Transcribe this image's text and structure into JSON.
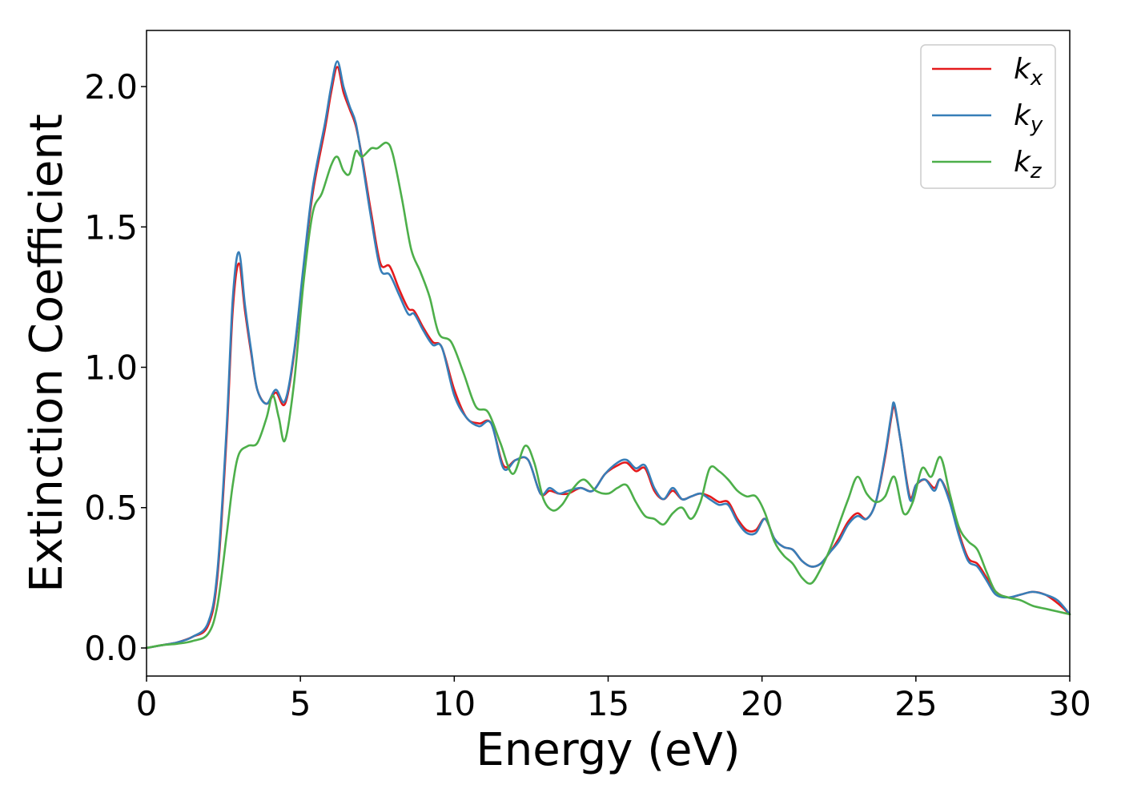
{
  "chart_data": {
    "type": "line",
    "xlabel": "Energy (eV)",
    "ylabel": "Extinction Coefficient",
    "xlim": [
      0,
      30
    ],
    "ylim": [
      -0.1,
      2.2
    ],
    "xticks": [
      0,
      5,
      10,
      15,
      20,
      25,
      30
    ],
    "xtick_labels": [
      "0",
      "5",
      "10",
      "15",
      "20",
      "25",
      "30"
    ],
    "yticks": [
      0.0,
      0.5,
      1.0,
      1.5,
      2.0
    ],
    "ytick_labels": [
      "0.0",
      "0.5",
      "1.0",
      "1.5",
      "2.0"
    ],
    "grid": false,
    "legend_position": "top-right",
    "series": [
      {
        "name": "k_x",
        "label_base": "k",
        "label_sub": "x",
        "color": "#e41a1c",
        "x": [
          0,
          0.5,
          1.0,
          1.5,
          2.0,
          2.3,
          2.6,
          2.8,
          3.0,
          3.2,
          3.4,
          3.6,
          3.9,
          4.2,
          4.5,
          4.8,
          5.1,
          5.4,
          5.8,
          6.0,
          6.2,
          6.4,
          6.6,
          6.8,
          7.0,
          7.3,
          7.6,
          7.9,
          8.2,
          8.5,
          8.7,
          9.0,
          9.3,
          9.6,
          10.0,
          10.4,
          10.8,
          11.2,
          11.6,
          12.0,
          12.4,
          12.8,
          13.1,
          13.4,
          13.7,
          14.1,
          14.5,
          14.9,
          15.3,
          15.6,
          15.9,
          16.2,
          16.5,
          16.8,
          17.1,
          17.4,
          17.7,
          18.0,
          18.3,
          18.6,
          18.9,
          19.2,
          19.5,
          19.8,
          20.1,
          20.4,
          20.7,
          21.0,
          21.3,
          21.6,
          21.9,
          22.2,
          22.5,
          22.8,
          23.1,
          23.4,
          23.7,
          24.0,
          24.2,
          24.3,
          24.5,
          24.8,
          25.0,
          25.3,
          25.6,
          25.8,
          26.1,
          26.4,
          26.7,
          27.0,
          27.3,
          27.6,
          28.0,
          28.4,
          28.8,
          29.2,
          29.6,
          30.0
        ],
        "y": [
          0.0,
          0.01,
          0.02,
          0.04,
          0.08,
          0.25,
          0.75,
          1.2,
          1.37,
          1.2,
          1.05,
          0.92,
          0.87,
          0.91,
          0.87,
          1.05,
          1.35,
          1.62,
          1.85,
          1.98,
          2.07,
          1.98,
          1.92,
          1.86,
          1.75,
          1.55,
          1.37,
          1.36,
          1.28,
          1.21,
          1.2,
          1.14,
          1.09,
          1.07,
          0.92,
          0.82,
          0.8,
          0.8,
          0.65,
          0.67,
          0.67,
          0.55,
          0.56,
          0.55,
          0.55,
          0.57,
          0.56,
          0.62,
          0.65,
          0.66,
          0.63,
          0.64,
          0.56,
          0.53,
          0.56,
          0.53,
          0.54,
          0.55,
          0.54,
          0.52,
          0.52,
          0.46,
          0.42,
          0.42,
          0.46,
          0.39,
          0.36,
          0.35,
          0.31,
          0.29,
          0.3,
          0.34,
          0.39,
          0.45,
          0.48,
          0.46,
          0.52,
          0.68,
          0.82,
          0.86,
          0.74,
          0.54,
          0.58,
          0.6,
          0.57,
          0.6,
          0.53,
          0.41,
          0.32,
          0.3,
          0.25,
          0.2,
          0.18,
          0.19,
          0.2,
          0.19,
          0.16,
          0.12
        ]
      },
      {
        "name": "k_y",
        "label_base": "k",
        "label_sub": "y",
        "color": "#377eb8",
        "x": [
          0,
          0.5,
          1.0,
          1.5,
          2.0,
          2.3,
          2.6,
          2.8,
          3.0,
          3.2,
          3.4,
          3.6,
          3.9,
          4.2,
          4.5,
          4.8,
          5.1,
          5.4,
          5.8,
          6.0,
          6.2,
          6.4,
          6.6,
          6.8,
          7.0,
          7.3,
          7.6,
          7.9,
          8.2,
          8.5,
          8.7,
          9.0,
          9.3,
          9.6,
          10.0,
          10.4,
          10.8,
          11.2,
          11.6,
          12.0,
          12.4,
          12.8,
          13.1,
          13.4,
          13.7,
          14.1,
          14.5,
          14.9,
          15.3,
          15.6,
          15.9,
          16.2,
          16.5,
          16.8,
          17.1,
          17.4,
          17.7,
          18.0,
          18.3,
          18.6,
          18.9,
          19.2,
          19.5,
          19.8,
          20.1,
          20.4,
          20.7,
          21.0,
          21.3,
          21.6,
          21.9,
          22.2,
          22.5,
          22.8,
          23.1,
          23.4,
          23.7,
          24.0,
          24.2,
          24.3,
          24.5,
          24.8,
          25.0,
          25.3,
          25.6,
          25.8,
          26.1,
          26.4,
          26.7,
          27.0,
          27.3,
          27.6,
          28.0,
          28.4,
          28.8,
          29.2,
          29.6,
          30.0
        ],
        "y": [
          0.0,
          0.01,
          0.02,
          0.04,
          0.09,
          0.27,
          0.78,
          1.24,
          1.41,
          1.22,
          1.06,
          0.92,
          0.87,
          0.92,
          0.88,
          1.06,
          1.36,
          1.64,
          1.87,
          2.0,
          2.09,
          2.0,
          1.93,
          1.87,
          1.74,
          1.53,
          1.35,
          1.33,
          1.26,
          1.19,
          1.19,
          1.13,
          1.08,
          1.07,
          0.9,
          0.82,
          0.79,
          0.8,
          0.64,
          0.67,
          0.67,
          0.55,
          0.57,
          0.55,
          0.56,
          0.57,
          0.56,
          0.62,
          0.66,
          0.67,
          0.64,
          0.65,
          0.57,
          0.53,
          0.57,
          0.53,
          0.54,
          0.55,
          0.53,
          0.51,
          0.51,
          0.45,
          0.41,
          0.41,
          0.46,
          0.39,
          0.36,
          0.35,
          0.31,
          0.29,
          0.3,
          0.34,
          0.38,
          0.44,
          0.47,
          0.46,
          0.52,
          0.69,
          0.83,
          0.87,
          0.74,
          0.53,
          0.58,
          0.6,
          0.56,
          0.6,
          0.52,
          0.4,
          0.31,
          0.29,
          0.24,
          0.19,
          0.18,
          0.19,
          0.2,
          0.19,
          0.17,
          0.12
        ]
      },
      {
        "name": "k_z",
        "label_base": "k",
        "label_sub": "z",
        "color": "#4daf4a",
        "x": [
          0,
          0.5,
          1.0,
          1.5,
          2.0,
          2.3,
          2.6,
          2.8,
          3.0,
          3.3,
          3.6,
          3.9,
          4.1,
          4.3,
          4.5,
          4.8,
          5.1,
          5.4,
          5.7,
          6.0,
          6.2,
          6.4,
          6.6,
          6.8,
          7.0,
          7.3,
          7.5,
          7.8,
          8.0,
          8.3,
          8.6,
          8.9,
          9.2,
          9.5,
          9.9,
          10.3,
          10.7,
          11.1,
          11.5,
          11.9,
          12.3,
          12.6,
          12.9,
          13.2,
          13.5,
          13.8,
          14.2,
          14.6,
          15.0,
          15.3,
          15.6,
          15.9,
          16.2,
          16.5,
          16.8,
          17.1,
          17.4,
          17.7,
          18.0,
          18.3,
          18.6,
          18.9,
          19.2,
          19.5,
          19.8,
          20.1,
          20.4,
          20.7,
          21.0,
          21.3,
          21.6,
          21.9,
          22.2,
          22.5,
          22.8,
          23.1,
          23.4,
          23.7,
          24.0,
          24.3,
          24.6,
          24.9,
          25.2,
          25.5,
          25.8,
          26.1,
          26.4,
          26.7,
          27.0,
          27.3,
          27.6,
          28.0,
          28.4,
          28.8,
          29.2,
          29.6,
          30.0
        ],
        "y": [
          0.0,
          0.01,
          0.015,
          0.025,
          0.05,
          0.15,
          0.4,
          0.58,
          0.69,
          0.72,
          0.73,
          0.82,
          0.9,
          0.82,
          0.74,
          0.95,
          1.3,
          1.55,
          1.62,
          1.72,
          1.75,
          1.7,
          1.69,
          1.77,
          1.75,
          1.78,
          1.78,
          1.8,
          1.76,
          1.6,
          1.42,
          1.34,
          1.25,
          1.12,
          1.09,
          0.98,
          0.86,
          0.84,
          0.73,
          0.62,
          0.72,
          0.66,
          0.53,
          0.49,
          0.51,
          0.56,
          0.6,
          0.56,
          0.55,
          0.57,
          0.58,
          0.52,
          0.47,
          0.46,
          0.44,
          0.48,
          0.5,
          0.46,
          0.52,
          0.64,
          0.63,
          0.6,
          0.56,
          0.54,
          0.54,
          0.48,
          0.38,
          0.33,
          0.3,
          0.25,
          0.23,
          0.28,
          0.35,
          0.44,
          0.53,
          0.61,
          0.55,
          0.52,
          0.54,
          0.61,
          0.48,
          0.52,
          0.64,
          0.61,
          0.68,
          0.55,
          0.43,
          0.38,
          0.35,
          0.27,
          0.2,
          0.18,
          0.17,
          0.15,
          0.14,
          0.13,
          0.12
        ]
      }
    ]
  }
}
